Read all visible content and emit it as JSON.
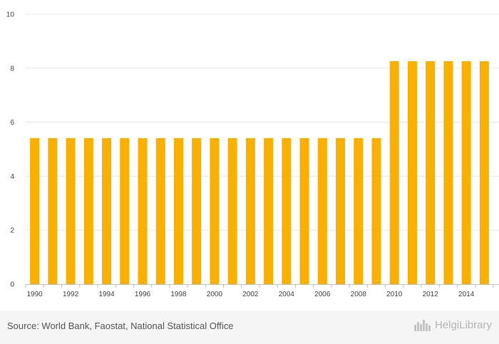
{
  "chart_data": {
    "type": "bar",
    "categories": [
      "1990",
      "1991",
      "1992",
      "1993",
      "1994",
      "1995",
      "1996",
      "1997",
      "1998",
      "1999",
      "2000",
      "2001",
      "2002",
      "2003",
      "2004",
      "2005",
      "2006",
      "2007",
      "2008",
      "2009",
      "2010",
      "2011",
      "2012",
      "2013",
      "2014",
      "2015"
    ],
    "values": [
      5.41,
      5.41,
      5.41,
      5.41,
      5.41,
      5.41,
      5.41,
      5.41,
      5.41,
      5.41,
      5.41,
      5.41,
      5.41,
      5.41,
      5.41,
      5.41,
      5.41,
      5.41,
      5.41,
      5.41,
      8.26,
      8.26,
      8.26,
      8.26,
      8.26,
      8.26
    ],
    "x_tick_labels": [
      "1990",
      "1992",
      "1994",
      "1996",
      "1998",
      "2000",
      "2002",
      "2004",
      "2006",
      "2008",
      "2010",
      "2012",
      "2014"
    ],
    "y_ticks": [
      0,
      2,
      4,
      6,
      8,
      10
    ],
    "ylim": [
      0,
      10
    ],
    "title": "",
    "xlabel": "",
    "ylabel": "",
    "grid": true,
    "bar_color": "#f9b000"
  },
  "footer": {
    "source_text": "Source: World Bank, Faostat, National Statistical Office",
    "logo_text": "HelgiLibrary",
    "logo_icon": "skyline-icon"
  }
}
